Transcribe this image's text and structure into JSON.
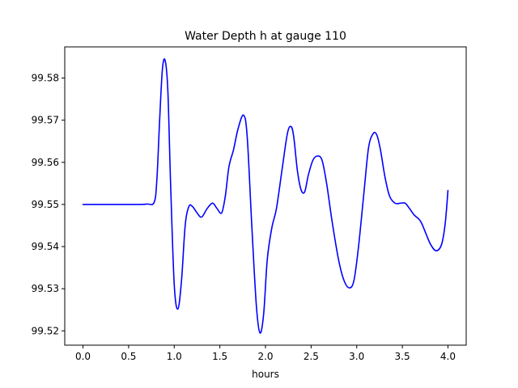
{
  "chart_data": {
    "type": "line",
    "title": "Water Depth h at gauge 110",
    "xlabel": "hours",
    "ylabel": "",
    "xlim": [
      -0.2,
      4.2
    ],
    "ylim": [
      99.5166,
      99.5874
    ],
    "xticks": [
      0.0,
      0.5,
      1.0,
      1.5,
      2.0,
      2.5,
      3.0,
      3.5,
      4.0
    ],
    "xtick_labels": [
      "0.0",
      "0.5",
      "1.0",
      "1.5",
      "2.0",
      "2.5",
      "3.0",
      "3.5",
      "4.0"
    ],
    "yticks": [
      99.52,
      99.53,
      99.54,
      99.55,
      99.56,
      99.57,
      99.58
    ],
    "ytick_labels": [
      "99.52",
      "99.53",
      "99.54",
      "99.55",
      "99.56",
      "99.57",
      "99.58"
    ],
    "grid": false,
    "series": [
      {
        "name": "",
        "color": "#0000ff",
        "x": [
          0.0,
          0.3,
          0.6,
          0.7,
          0.78,
          0.81,
          0.84,
          0.87,
          0.9,
          0.93,
          0.96,
          1.0,
          1.04,
          1.08,
          1.12,
          1.16,
          1.2,
          1.25,
          1.3,
          1.36,
          1.42,
          1.47,
          1.52,
          1.56,
          1.6,
          1.65,
          1.7,
          1.76,
          1.8,
          1.85,
          1.9,
          1.94,
          1.98,
          2.02,
          2.07,
          2.12,
          2.18,
          2.24,
          2.28,
          2.31,
          2.35,
          2.39,
          2.43,
          2.47,
          2.52,
          2.57,
          2.62,
          2.67,
          2.73,
          2.8,
          2.86,
          2.92,
          2.97,
          3.02,
          3.08,
          3.13,
          3.18,
          3.22,
          3.26,
          3.31,
          3.36,
          3.42,
          3.48,
          3.53,
          3.58,
          3.63,
          3.7,
          3.76,
          3.81,
          3.87,
          3.93,
          3.97,
          4.0
        ],
        "y": [
          99.55,
          99.55,
          99.55,
          99.5501,
          99.5505,
          99.556,
          99.57,
          99.582,
          99.5842,
          99.577,
          99.555,
          99.531,
          99.5252,
          99.532,
          99.545,
          99.5495,
          99.5495,
          99.548,
          99.547,
          99.549,
          99.5503,
          99.549,
          99.548,
          99.552,
          99.559,
          99.563,
          99.568,
          99.5712,
          99.566,
          99.545,
          99.526,
          99.5195,
          99.524,
          99.537,
          99.5445,
          99.549,
          99.558,
          99.5668,
          99.5685,
          99.566,
          99.558,
          99.5535,
          99.553,
          99.557,
          99.5605,
          99.5615,
          99.5605,
          99.555,
          99.546,
          99.537,
          99.532,
          99.5302,
          99.532,
          99.54,
          99.553,
          99.5635,
          99.5668,
          99.5665,
          99.563,
          99.5565,
          99.552,
          99.5503,
          99.5503,
          99.5503,
          99.549,
          99.5475,
          99.546,
          99.543,
          99.5405,
          99.539,
          99.5405,
          99.5455,
          99.5533
        ]
      }
    ]
  }
}
